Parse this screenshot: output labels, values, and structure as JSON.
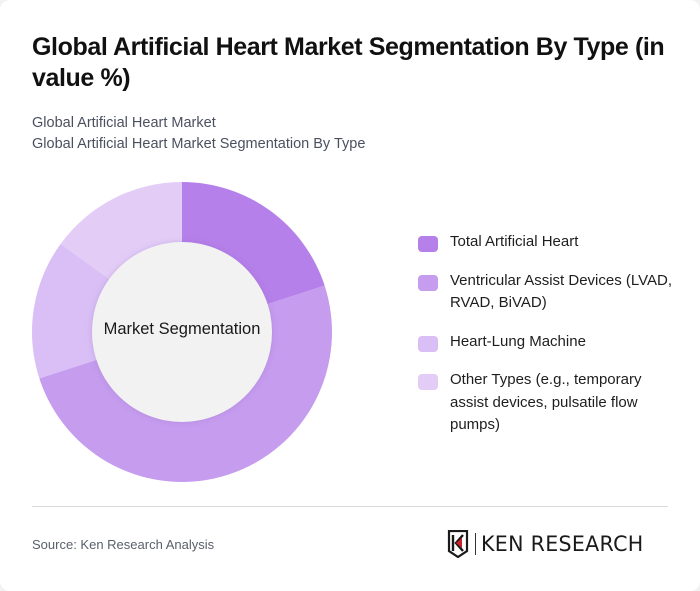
{
  "header": {
    "title": "Global Artificial Heart Market Segmentation By Type (in value %)",
    "subtitle_line1": "Global Artificial Heart Market",
    "subtitle_line2": "Global Artificial Heart Market Segmentation By Type"
  },
  "chart": {
    "center_label": "Market Segmentation"
  },
  "legend": {
    "items": [
      {
        "label": "Total Artificial Heart",
        "color": "#b580e9"
      },
      {
        "label": "Ventricular Assist Devices (LVAD, RVAD, BiVAD)",
        "color": "#c59cee"
      },
      {
        "label": "Heart-Lung Machine",
        "color": "#d9bff5"
      },
      {
        "label": "Other Types (e.g., temporary assist devices, pulsatile flow pumps)",
        "color": "#e3cdf7"
      }
    ]
  },
  "footer": {
    "source": "Source: Ken Research Analysis",
    "logo_text": "KEN RESEARCH",
    "logo_icon": "ken-research-k-shield-icon"
  },
  "chart_data": {
    "type": "pie",
    "subtype": "donut",
    "title": "Global Artificial Heart Market Segmentation By Type (in value %)",
    "center_label": "Market Segmentation",
    "categories": [
      "Total Artificial Heart",
      "Ventricular Assist Devices (LVAD, RVAD, BiVAD)",
      "Heart-Lung Machine",
      "Other Types (e.g., temporary assist devices, pulsatile flow pumps)"
    ],
    "values": [
      20,
      50,
      15,
      15
    ],
    "unit": "%",
    "colors": [
      "#b580e9",
      "#c59cee",
      "#d9bff5",
      "#e3cdf7"
    ],
    "start_angle": "12 o'clock, clockwise",
    "legend_position": "right",
    "data_labels_shown": false
  }
}
